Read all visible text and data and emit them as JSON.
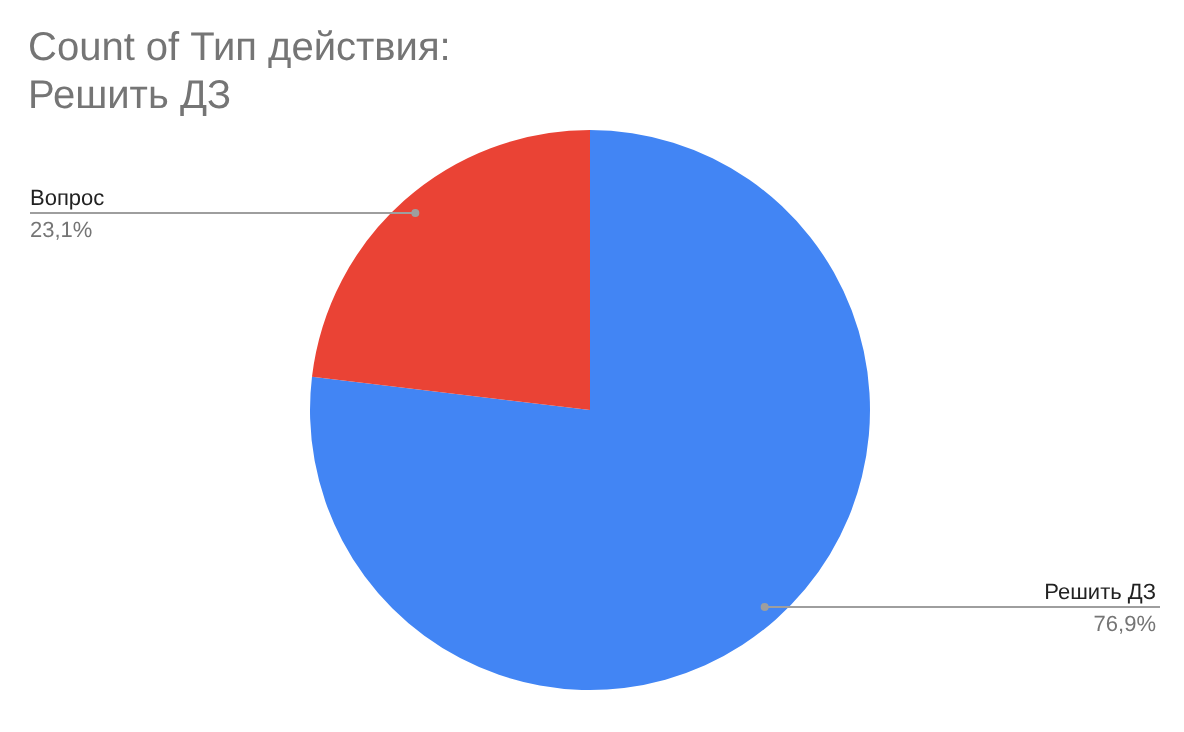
{
  "chart_data": {
    "type": "pie",
    "title": "Count of Тип действия:\nРешить ДЗ",
    "categories": [
      "Решить ДЗ",
      "Вопрос"
    ],
    "values": [
      76.9,
      23.1
    ],
    "colors": [
      "#4285f4",
      "#ea4335"
    ],
    "value_labels": [
      "76,9%",
      "23,1%"
    ],
    "legend": false
  }
}
